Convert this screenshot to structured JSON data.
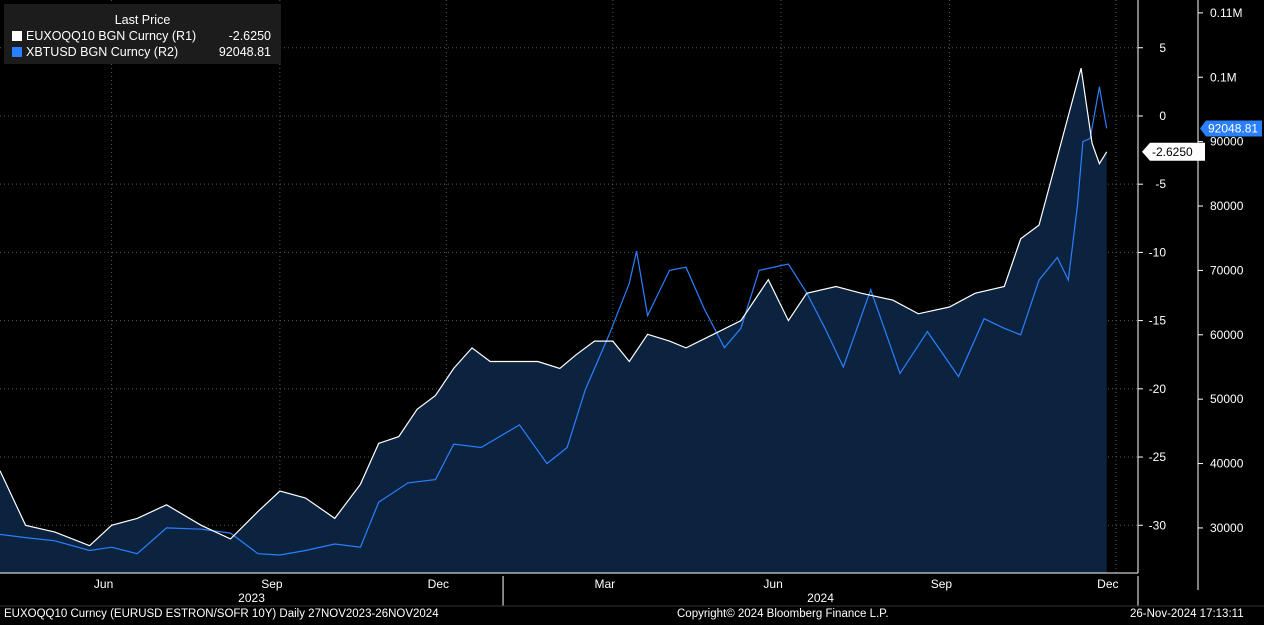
{
  "legend": {
    "header": "Last Price",
    "series": [
      {
        "label": "EUXOQQ10 BGN Curncy  (R1)",
        "value": "-2.6250",
        "color": "#ffffff"
      },
      {
        "label": "XBTUSD BGN Curncy  (R2)",
        "value": "92048.81",
        "color": "#2a7fff"
      }
    ]
  },
  "footer": {
    "left": "EUXOQQ10 Curncy (EURUSD  ESTRON/SOFR 10Y)  Daily 27NOV2023-26NOV2024",
    "center": "Copyright© 2024 Bloomberg Finance L.P.",
    "right": "26-Nov-2024 17:13:11"
  },
  "chart_data": {
    "type": "line",
    "x_month_labels": [
      "Jun",
      "Sep",
      "Dec",
      "Mar",
      "Jun",
      "Sep",
      "Dec"
    ],
    "x_year_labels": [
      "2023",
      "2024"
    ],
    "axis_r1": {
      "ticks": [
        5,
        0,
        -5,
        -10,
        -15,
        -20,
        -25,
        -30
      ],
      "range": [
        -33.5,
        8.5
      ]
    },
    "axis_r2": {
      "tick_labels": [
        "0.11M",
        "0.1M",
        "90000",
        "80000",
        "70000",
        "60000",
        "50000",
        "40000",
        "30000"
      ],
      "tick_values": [
        110000,
        100000,
        90000,
        80000,
        70000,
        60000,
        50000,
        40000,
        30000
      ],
      "range": [
        23000,
        112000
      ]
    },
    "last_value_tags": {
      "r1": "-2.6250",
      "r2": "92048.81"
    },
    "grid": true,
    "legend_position": "top-left",
    "series": [
      {
        "name": "EUXOQQ10 BGN Curncy",
        "axis": "R1",
        "color": "#ffffff",
        "points": [
          [
            "2023-04-01",
            -26
          ],
          [
            "2023-04-15",
            -30
          ],
          [
            "2023-05-01",
            -30.5
          ],
          [
            "2023-05-20",
            -31.5
          ],
          [
            "2023-06-01",
            -30
          ],
          [
            "2023-06-15",
            -29.5
          ],
          [
            "2023-07-01",
            -28.5
          ],
          [
            "2023-07-20",
            -30
          ],
          [
            "2023-08-05",
            -31
          ],
          [
            "2023-08-20",
            -29
          ],
          [
            "2023-09-01",
            -27.5
          ],
          [
            "2023-09-15",
            -28
          ],
          [
            "2023-10-01",
            -29.5
          ],
          [
            "2023-10-15",
            -27
          ],
          [
            "2023-10-25",
            -24
          ],
          [
            "2023-11-05",
            -23.5
          ],
          [
            "2023-11-15",
            -21.5
          ],
          [
            "2023-11-25",
            -20.5
          ],
          [
            "2023-12-05",
            -18.5
          ],
          [
            "2023-12-15",
            -17
          ],
          [
            "2023-12-25",
            -18
          ],
          [
            "2024-01-05",
            -18
          ],
          [
            "2024-01-20",
            -18
          ],
          [
            "2024-02-01",
            -18.5
          ],
          [
            "2024-02-10",
            -17.5
          ],
          [
            "2024-02-20",
            -16.5
          ],
          [
            "2024-03-01",
            -16.5
          ],
          [
            "2024-03-10",
            -18
          ],
          [
            "2024-03-20",
            -16
          ],
          [
            "2024-04-01",
            -16.5
          ],
          [
            "2024-04-10",
            -17
          ],
          [
            "2024-04-25",
            -16
          ],
          [
            "2024-05-10",
            -15
          ],
          [
            "2024-05-25",
            -12
          ],
          [
            "2024-06-05",
            -15
          ],
          [
            "2024-06-15",
            -13
          ],
          [
            "2024-07-01",
            -12.5
          ],
          [
            "2024-07-15",
            -13
          ],
          [
            "2024-08-01",
            -13.5
          ],
          [
            "2024-08-15",
            -14.5
          ],
          [
            "2024-09-01",
            -14
          ],
          [
            "2024-09-15",
            -13
          ],
          [
            "2024-10-01",
            -12.5
          ],
          [
            "2024-10-10",
            -9
          ],
          [
            "2024-10-20",
            -8
          ],
          [
            "2024-10-28",
            -4
          ],
          [
            "2024-11-05",
            0
          ],
          [
            "2024-11-12",
            3.5
          ],
          [
            "2024-11-18",
            -2
          ],
          [
            "2024-11-22",
            -3.5
          ],
          [
            "2024-11-26",
            -2.625
          ]
        ]
      },
      {
        "name": "XBTUSD BGN Curncy",
        "axis": "R2",
        "color": "#2a7fff",
        "points": [
          [
            "2023-04-01",
            29000
          ],
          [
            "2023-04-15",
            28500
          ],
          [
            "2023-05-01",
            28000
          ],
          [
            "2023-05-20",
            26500
          ],
          [
            "2023-06-01",
            27000
          ],
          [
            "2023-06-15",
            26000
          ],
          [
            "2023-07-01",
            30000
          ],
          [
            "2023-07-20",
            29800
          ],
          [
            "2023-08-05",
            29200
          ],
          [
            "2023-08-20",
            26000
          ],
          [
            "2023-09-01",
            25800
          ],
          [
            "2023-09-15",
            26500
          ],
          [
            "2023-10-01",
            27500
          ],
          [
            "2023-10-15",
            27000
          ],
          [
            "2023-10-25",
            34000
          ],
          [
            "2023-11-10",
            37000
          ],
          [
            "2023-11-25",
            37500
          ],
          [
            "2023-12-05",
            43000
          ],
          [
            "2023-12-20",
            42500
          ],
          [
            "2024-01-10",
            46000
          ],
          [
            "2024-01-25",
            40000
          ],
          [
            "2024-02-05",
            42500
          ],
          [
            "2024-02-15",
            51500
          ],
          [
            "2024-02-28",
            60000
          ],
          [
            "2024-03-10",
            68000
          ],
          [
            "2024-03-14",
            73000
          ],
          [
            "2024-03-20",
            63000
          ],
          [
            "2024-04-01",
            70000
          ],
          [
            "2024-04-10",
            70500
          ],
          [
            "2024-04-20",
            64000
          ],
          [
            "2024-05-01",
            58000
          ],
          [
            "2024-05-10",
            61000
          ],
          [
            "2024-05-20",
            70000
          ],
          [
            "2024-06-05",
            71000
          ],
          [
            "2024-06-15",
            66500
          ],
          [
            "2024-06-25",
            61000
          ],
          [
            "2024-07-05",
            55000
          ],
          [
            "2024-07-20",
            67000
          ],
          [
            "2024-08-05",
            54000
          ],
          [
            "2024-08-20",
            60500
          ],
          [
            "2024-09-06",
            53500
          ],
          [
            "2024-09-20",
            62500
          ],
          [
            "2024-10-01",
            61000
          ],
          [
            "2024-10-10",
            60000
          ],
          [
            "2024-10-20",
            68500
          ],
          [
            "2024-10-30",
            72000
          ],
          [
            "2024-11-05",
            68500
          ],
          [
            "2024-11-10",
            80000
          ],
          [
            "2024-11-13",
            90000
          ],
          [
            "2024-11-17",
            90500
          ],
          [
            "2024-11-22",
            98500
          ],
          [
            "2024-11-26",
            92048.81
          ]
        ]
      }
    ]
  }
}
